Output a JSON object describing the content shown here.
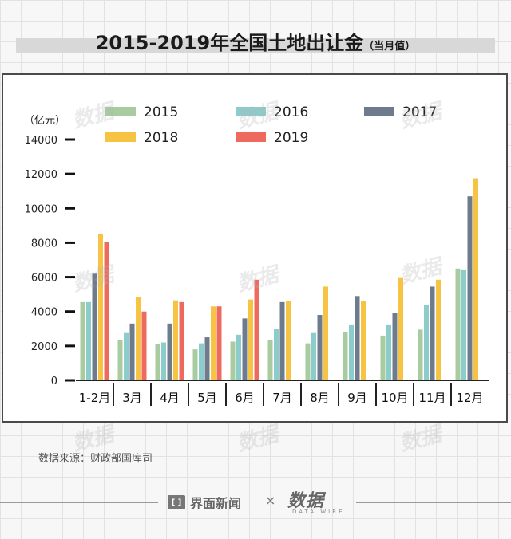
{
  "title": "2015-2019年全国土地出让金",
  "title_sub": "（当月值）",
  "source_text": "数据来源：财政部国库司",
  "brand": {
    "name": "界面新闻",
    "logo_glyph": "[ ]",
    "separator": "×",
    "partner": "数据",
    "partner_sub": "DATA WIRE"
  },
  "watermark_text": "数据",
  "colors": {
    "2015": "#a8cba0",
    "2016": "#8ccccb",
    "2017": "#6e7b8c",
    "2018": "#f6c343",
    "2019": "#ef6a5e"
  },
  "chart_data": {
    "type": "bar",
    "title": "2015-2019年全国土地出让金（当月值）",
    "ylabel": "（亿元）",
    "xlabel": "",
    "ylim": [
      0,
      14000
    ],
    "yticks": [
      0,
      2000,
      4000,
      6000,
      8000,
      10000,
      12000,
      14000
    ],
    "categories": [
      "1-2月",
      "3月",
      "4月",
      "5月",
      "6月",
      "7月",
      "8月",
      "9月",
      "10月",
      "11月",
      "12月"
    ],
    "series": [
      {
        "name": "2015",
        "values": [
          4550,
          2350,
          2100,
          1800,
          2250,
          2350,
          2150,
          2800,
          2600,
          2950,
          6500
        ]
      },
      {
        "name": "2016",
        "values": [
          4550,
          2750,
          2200,
          2150,
          2650,
          3000,
          2750,
          3250,
          3250,
          4400,
          6450
        ]
      },
      {
        "name": "2017",
        "values": [
          6200,
          3300,
          3300,
          2500,
          3600,
          4550,
          3800,
          4900,
          3900,
          5450,
          10700
        ]
      },
      {
        "name": "2018",
        "values": [
          8500,
          4850,
          4650,
          4300,
          4700,
          4600,
          5450,
          4600,
          5950,
          5850,
          11750
        ]
      },
      {
        "name": "2019",
        "values": [
          8050,
          4000,
          4550,
          4300,
          5850,
          null,
          null,
          null,
          null,
          null,
          null
        ]
      }
    ],
    "legend": [
      "2015",
      "2016",
      "2017",
      "2018",
      "2019"
    ],
    "legend_position": "top"
  }
}
